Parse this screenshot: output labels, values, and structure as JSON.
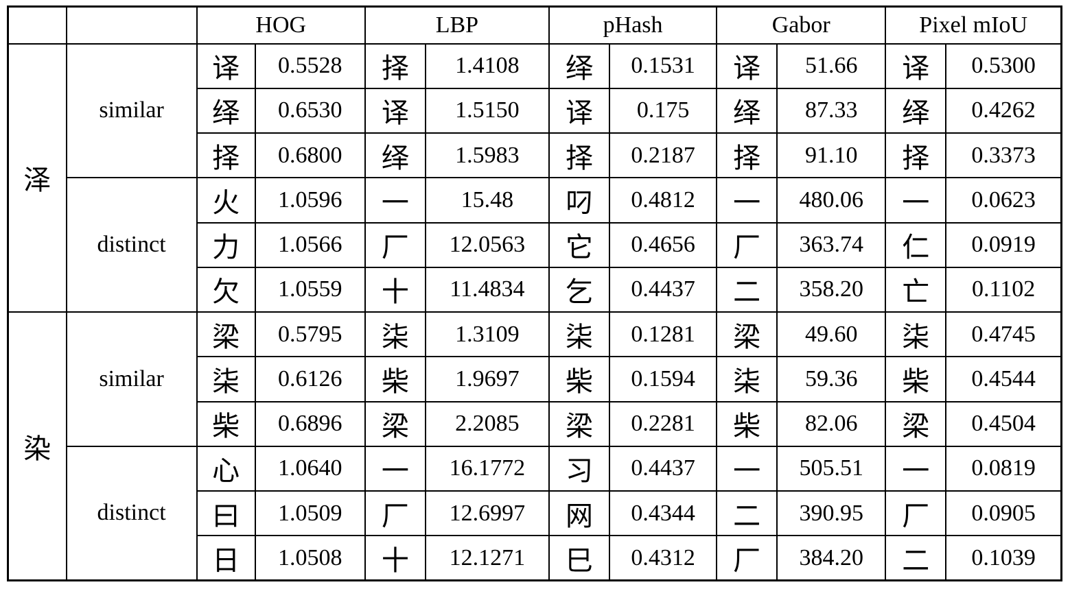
{
  "table": {
    "metrics": [
      "HOG",
      "LBP",
      "pHash",
      "Gabor",
      "Pixel mIoU"
    ],
    "groups": [
      {
        "char": "泽",
        "blocks": [
          {
            "label": "similar",
            "rows": [
              [
                [
                  "译",
                  "0.5528"
                ],
                [
                  "择",
                  "1.4108"
                ],
                [
                  "绎",
                  "0.1531"
                ],
                [
                  "译",
                  "51.66"
                ],
                [
                  "译",
                  "0.5300"
                ]
              ],
              [
                [
                  "绎",
                  "0.6530"
                ],
                [
                  "译",
                  "1.5150"
                ],
                [
                  "译",
                  "0.175"
                ],
                [
                  "绎",
                  "87.33"
                ],
                [
                  "绎",
                  "0.4262"
                ]
              ],
              [
                [
                  "择",
                  "0.6800"
                ],
                [
                  "绎",
                  "1.5983"
                ],
                [
                  "择",
                  "0.2187"
                ],
                [
                  "择",
                  "91.10"
                ],
                [
                  "择",
                  "0.3373"
                ]
              ]
            ]
          },
          {
            "label": "distinct",
            "rows": [
              [
                [
                  "火",
                  "1.0596"
                ],
                [
                  "一",
                  "15.48"
                ],
                [
                  "叼",
                  "0.4812"
                ],
                [
                  "一",
                  "480.06"
                ],
                [
                  "一",
                  "0.0623"
                ]
              ],
              [
                [
                  "力",
                  "1.0566"
                ],
                [
                  "厂",
                  "12.0563"
                ],
                [
                  "它",
                  "0.4656"
                ],
                [
                  "厂",
                  "363.74"
                ],
                [
                  "仁",
                  "0.0919"
                ]
              ],
              [
                [
                  "欠",
                  "1.0559"
                ],
                [
                  "十",
                  "11.4834"
                ],
                [
                  "乞",
                  "0.4437"
                ],
                [
                  "二",
                  "358.20"
                ],
                [
                  "亡",
                  "0.1102"
                ]
              ]
            ]
          }
        ]
      },
      {
        "char": "染",
        "blocks": [
          {
            "label": "similar",
            "rows": [
              [
                [
                  "梁",
                  "0.5795"
                ],
                [
                  "柒",
                  "1.3109"
                ],
                [
                  "柒",
                  "0.1281"
                ],
                [
                  "梁",
                  "49.60"
                ],
                [
                  "柒",
                  "0.4745"
                ]
              ],
              [
                [
                  "柒",
                  "0.6126"
                ],
                [
                  "柴",
                  "1.9697"
                ],
                [
                  "柴",
                  "0.1594"
                ],
                [
                  "柒",
                  "59.36"
                ],
                [
                  "柴",
                  "0.4544"
                ]
              ],
              [
                [
                  "柴",
                  "0.6896"
                ],
                [
                  "梁",
                  "2.2085"
                ],
                [
                  "梁",
                  "0.2281"
                ],
                [
                  "柴",
                  "82.06"
                ],
                [
                  "梁",
                  "0.4504"
                ]
              ]
            ]
          },
          {
            "label": "distinct",
            "rows": [
              [
                [
                  "心",
                  "1.0640"
                ],
                [
                  "一",
                  "16.1772"
                ],
                [
                  "习",
                  "0.4437"
                ],
                [
                  "一",
                  "505.51"
                ],
                [
                  "一",
                  "0.0819"
                ]
              ],
              [
                [
                  "曰",
                  "1.0509"
                ],
                [
                  "厂",
                  "12.6997"
                ],
                [
                  "网",
                  "0.4344"
                ],
                [
                  "二",
                  "390.95"
                ],
                [
                  "厂",
                  "0.0905"
                ]
              ],
              [
                [
                  "日",
                  "1.0508"
                ],
                [
                  "十",
                  "12.1271"
                ],
                [
                  "巳",
                  "0.4312"
                ],
                [
                  "厂",
                  "384.20"
                ],
                [
                  "二",
                  "0.1039"
                ]
              ]
            ]
          }
        ]
      }
    ]
  }
}
